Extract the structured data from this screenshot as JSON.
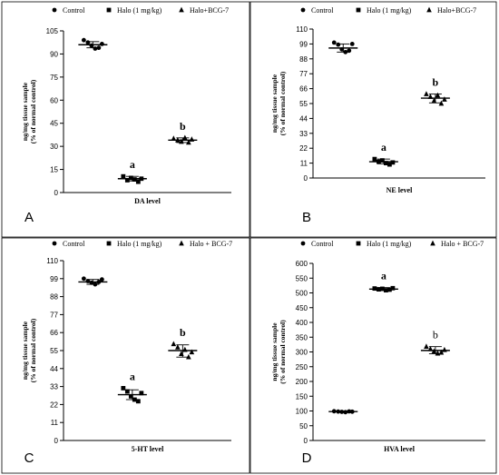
{
  "chart_data": [
    {
      "type": "scatter",
      "panel_letter": "A",
      "title": "",
      "xlabel": "DA level",
      "ylabel_lines": [
        "ng/mg tissue sample",
        "(% of normal control)"
      ],
      "ylim": [
        0,
        105
      ],
      "yticks": [
        0,
        15,
        30,
        45,
        60,
        75,
        90,
        105
      ],
      "legend": [
        "Control",
        "Halo (1 mg/kg)",
        "Halo+BCG-7"
      ],
      "legend_placement": "top",
      "groups": [
        {
          "name": "Control",
          "marker": "circle",
          "mean": 96,
          "err": [
            94,
            98
          ],
          "points": [
            99,
            97.5,
            95.5,
            93.5,
            94,
            96.5
          ],
          "label": ""
        },
        {
          "name": "Halo (1 mg/kg)",
          "marker": "square",
          "mean": 9,
          "err": [
            7.5,
            10.5
          ],
          "points": [
            10.5,
            8,
            9.5,
            8.5,
            7,
            9
          ],
          "label": "a"
        },
        {
          "name": "Halo+BCG-7",
          "marker": "triangle",
          "mean": 34,
          "err": [
            32.5,
            35.5
          ],
          "points": [
            35,
            34,
            33,
            35.5,
            32.5,
            34.5
          ],
          "label": "b"
        }
      ]
    },
    {
      "type": "scatter",
      "panel_letter": "B",
      "title": "",
      "xlabel": "NE level",
      "ylabel_lines": [
        "ng/mg tissue sample",
        "(% of normal control)"
      ],
      "ylim": [
        0,
        110
      ],
      "yticks": [
        0,
        11,
        22,
        33,
        44,
        55,
        66,
        77,
        88,
        99,
        110
      ],
      "legend": [
        "Control",
        "Halo (1 mg/kg)",
        "Halo+BCG-7"
      ],
      "legend_placement": "top",
      "groups": [
        {
          "name": "Control",
          "marker": "circle",
          "mean": 96,
          "err": [
            93,
            99
          ],
          "points": [
            100,
            98.5,
            95,
            93,
            94,
            99
          ],
          "label": ""
        },
        {
          "name": "Halo (1 mg/kg)",
          "marker": "square",
          "mean": 12,
          "err": [
            10.5,
            14
          ],
          "points": [
            14,
            12,
            13,
            11,
            10,
            11.5
          ],
          "label": "a"
        },
        {
          "name": "Halo+BCG-7",
          "marker": "triangle",
          "mean": 59,
          "err": [
            55.5,
            62
          ],
          "points": [
            62,
            60,
            57,
            61,
            55,
            58
          ],
          "label": "b"
        }
      ]
    },
    {
      "type": "scatter",
      "panel_letter": "C",
      "title": "",
      "xlabel": "5-HT level",
      "ylabel_lines": [
        "ng/mg tissue sample",
        "(% of normal control)"
      ],
      "ylim": [
        0,
        110
      ],
      "yticks": [
        0,
        11,
        22,
        33,
        44,
        55,
        66,
        77,
        88,
        99,
        110
      ],
      "legend": [
        "Control",
        "Halo (1 mg/kg)",
        "Halo + BCG-7"
      ],
      "legend_placement": "top",
      "groups": [
        {
          "name": "Control",
          "marker": "circle",
          "mean": 97,
          "err": [
            95.5,
            98.5
          ],
          "points": [
            99,
            97.5,
            96.5,
            95.5,
            97,
            98.5
          ],
          "label": ""
        },
        {
          "name": "Halo (1 mg/kg)",
          "marker": "square",
          "mean": 28,
          "err": [
            25,
            31
          ],
          "points": [
            32,
            30,
            27,
            25,
            24,
            29
          ],
          "label": "a"
        },
        {
          "name": "Halo + BCG-7",
          "marker": "triangle",
          "mean": 55,
          "err": [
            51,
            58.5
          ],
          "points": [
            59,
            57,
            53,
            55.5,
            51,
            54
          ],
          "label": "b"
        }
      ]
    },
    {
      "type": "scatter",
      "panel_letter": "D",
      "title": "",
      "xlabel": "HVA level",
      "ylabel_lines": [
        "ng/mg tissue sample",
        "(% of normal control)"
      ],
      "ylim": [
        0,
        600
      ],
      "yticks": [
        0,
        50,
        100,
        150,
        200,
        250,
        300,
        350,
        400,
        450,
        500,
        550,
        600
      ],
      "legend": [
        "Control",
        "Halo (1 mg/kg)",
        "Halo + BCG-7"
      ],
      "legend_placement": "top",
      "groups": [
        {
          "name": "Control",
          "marker": "circle",
          "mean": 98,
          "err": [
            96,
            100
          ],
          "points": [
            99,
            98,
            97,
            96,
            98.5,
            97.5
          ],
          "label": ""
        },
        {
          "name": "Halo (1 mg/kg)",
          "marker": "square",
          "mean": 513,
          "err": [
            508,
            518
          ],
          "points": [
            515,
            512,
            514,
            509,
            511,
            516
          ],
          "label": "a"
        },
        {
          "name": "Halo + BCG-7",
          "marker": "triangle",
          "mean": 305,
          "err": [
            294,
            318
          ],
          "points": [
            318,
            310,
            302,
            295,
            298,
            307
          ],
          "label": "b"
        }
      ]
    }
  ]
}
